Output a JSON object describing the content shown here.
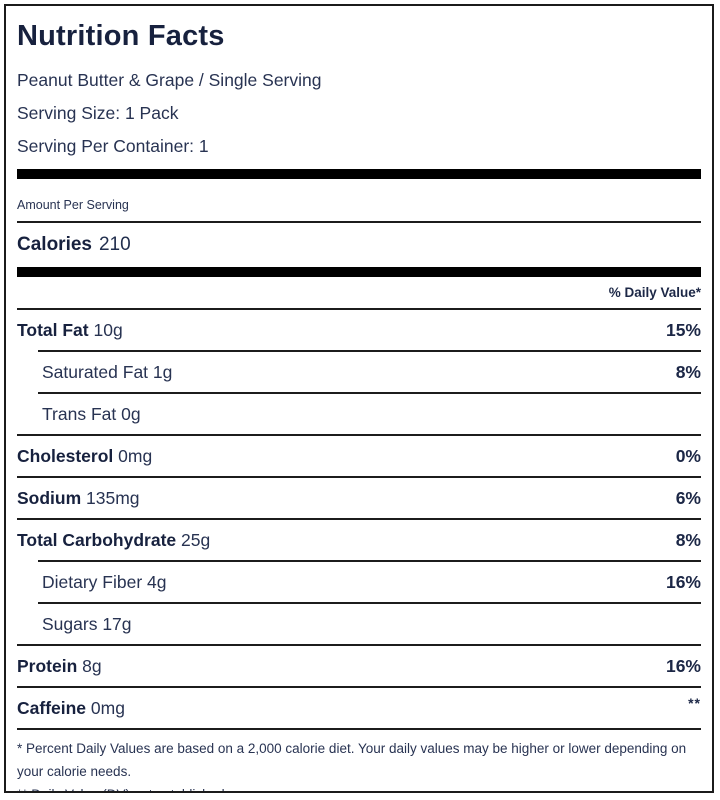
{
  "label": {
    "title": "Nutrition Facts",
    "subtitle": "Peanut Butter & Grape / Single Serving",
    "serving_size": "Serving Size: 1 Pack",
    "servings_per_container": "Serving Per Container: 1",
    "amount_per_serving": "Amount Per Serving",
    "calories_label": "Calories",
    "calories_value": "210",
    "daily_value_header": "% Daily Value*",
    "rows": [
      {
        "name": "Total Fat",
        "amount": "10g",
        "dv": "15%",
        "indent": false,
        "bold": true
      },
      {
        "name": "Saturated Fat",
        "amount": "1g",
        "dv": "8%",
        "indent": true,
        "bold": false
      },
      {
        "name": "Trans Fat",
        "amount": "0g",
        "dv": "",
        "indent": true,
        "bold": false
      },
      {
        "name": "Cholesterol",
        "amount": "0mg",
        "dv": "0%",
        "indent": false,
        "bold": true
      },
      {
        "name": "Sodium",
        "amount": "135mg",
        "dv": "6%",
        "indent": false,
        "bold": true
      },
      {
        "name": "Total Carbohydrate",
        "amount": "25g",
        "dv": "8%",
        "indent": false,
        "bold": true
      },
      {
        "name": "Dietary Fiber",
        "amount": "4g",
        "dv": "16%",
        "indent": true,
        "bold": false
      },
      {
        "name": "Sugars",
        "amount": "17g",
        "dv": "",
        "indent": true,
        "bold": false
      },
      {
        "name": "Protein",
        "amount": "8g",
        "dv": "16%",
        "indent": false,
        "bold": true
      },
      {
        "name": "Caffeine",
        "amount": "0mg",
        "dv": "**",
        "indent": false,
        "bold": true
      }
    ],
    "footnotes": [
      "* Percent Daily Values are based on a 2,000 calorie diet. Your daily values may be higher or lower depending on your calorie needs.",
      "** Daily Value (DV) not established"
    ]
  },
  "colors": {
    "text_navy": "#283352",
    "heading_navy": "#17213e",
    "rule_black": "#1c1c1c",
    "bar_black": "#000000",
    "background": "#ffffff"
  }
}
